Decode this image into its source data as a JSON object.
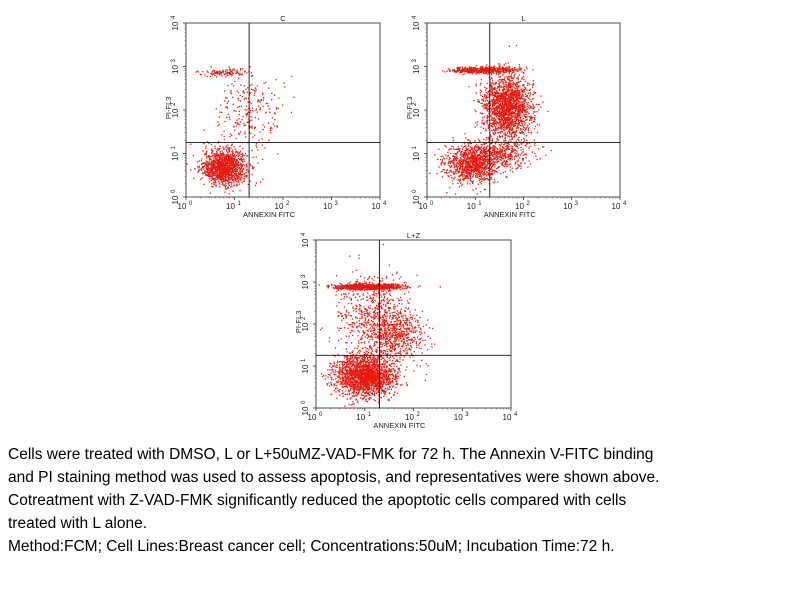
{
  "figure_panels": [
    "C",
    "L",
    "L+Z"
  ],
  "chart_data": [
    {
      "type": "scatter",
      "title": "C",
      "xlabel": "ANNEXIN FITC",
      "ylabel": "PI-FL3",
      "xscale": "log",
      "yscale": "log",
      "xlim": [
        1,
        10000
      ],
      "ylim": [
        1,
        10000
      ],
      "x_tick_labels": [
        "10",
        "10",
        "10",
        "10",
        "10"
      ],
      "x_tick_exponents": [
        "0",
        "1",
        "2",
        "3",
        "4"
      ],
      "y_tick_labels": [
        "10",
        "10",
        "10",
        "10",
        "10"
      ],
      "y_tick_exponents": [
        "0",
        "1",
        "2",
        "3",
        "4"
      ],
      "quadrant_gate": {
        "x": 20,
        "y": 18
      },
      "point_color": "#e8190f",
      "populations": [
        {
          "name": "live",
          "center": [
            6,
            5
          ],
          "spread": [
            0.22,
            0.2
          ],
          "count": 1300
        },
        {
          "name": "necrotic band",
          "center": [
            6,
            750
          ],
          "spread": [
            0.25,
            0.04
          ],
          "count": 110
        },
        {
          "name": "scatter",
          "center": [
            20,
            80
          ],
          "spread": [
            0.35,
            0.45
          ],
          "count": 240
        }
      ]
    },
    {
      "type": "scatter",
      "title": "L",
      "xlabel": "ANNEXIN FITC",
      "ylabel": "PI-FL3",
      "xscale": "log",
      "yscale": "log",
      "xlim": [
        1,
        10000
      ],
      "ylim": [
        1,
        10000
      ],
      "x_tick_labels": [
        "10",
        "10",
        "10",
        "10",
        "10"
      ],
      "x_tick_exponents": [
        "0",
        "1",
        "2",
        "3",
        "4"
      ],
      "y_tick_labels": [
        "10",
        "10",
        "10",
        "10",
        "10"
      ],
      "y_tick_exponents": [
        "0",
        "1",
        "2",
        "3",
        "4"
      ],
      "quadrant_gate": {
        "x": 20,
        "y": 18
      },
      "point_color": "#e8190f",
      "populations": [
        {
          "name": "live",
          "center": [
            8,
            6
          ],
          "spread": [
            0.28,
            0.22
          ],
          "count": 1000
        },
        {
          "name": "late apoptotic",
          "center": [
            45,
            120
          ],
          "spread": [
            0.25,
            0.35
          ],
          "count": 1800
        },
        {
          "name": "early apoptotic",
          "center": [
            35,
            10
          ],
          "spread": [
            0.3,
            0.18
          ],
          "count": 400
        },
        {
          "name": "necrotic band",
          "center": [
            15,
            850
          ],
          "spread": [
            0.35,
            0.035
          ],
          "count": 550
        }
      ]
    },
    {
      "type": "scatter",
      "title": "L+Z",
      "xlabel": "ANNEXIN FITC",
      "ylabel": "PI-FL3",
      "xscale": "log",
      "yscale": "log",
      "xlim": [
        1,
        10000
      ],
      "ylim": [
        1,
        10000
      ],
      "x_tick_labels": [
        "10",
        "10",
        "10",
        "10",
        "10"
      ],
      "x_tick_exponents": [
        "0",
        "1",
        "2",
        "3",
        "4"
      ],
      "y_tick_labels": [
        "10",
        "10",
        "10",
        "10",
        "10"
      ],
      "y_tick_exponents": [
        "0",
        "1",
        "2",
        "3",
        "4"
      ],
      "quadrant_gate": {
        "x": 20,
        "y": 18
      },
      "point_color": "#e8190f",
      "populations": [
        {
          "name": "live",
          "center": [
            10,
            6
          ],
          "spread": [
            0.3,
            0.25
          ],
          "count": 2000
        },
        {
          "name": "late apoptotic",
          "center": [
            40,
            60
          ],
          "spread": [
            0.3,
            0.35
          ],
          "count": 700
        },
        {
          "name": "necrotic band",
          "center": [
            12,
            800
          ],
          "spread": [
            0.35,
            0.035
          ],
          "count": 800
        },
        {
          "name": "scatter",
          "center": [
            12,
            200
          ],
          "spread": [
            0.35,
            0.5
          ],
          "count": 450
        }
      ]
    }
  ],
  "caption": {
    "line1": "Cells were treated with DMSO, L or L+50uMZ-VAD-FMK for 72 h. The Annexin V-FITC binding",
    "line2": "and PI staining method was used to assess apoptosis, and representatives were shown above.",
    "line3": "Cotreatment with Z-VAD-FMK significantly reduced the apoptotic cells compared with cells",
    "line4": "treated with L alone.",
    "line5": "Method:FCM; Cell Lines:Breast cancer cell; Concentrations:50uM; Incubation Time:72 h."
  }
}
